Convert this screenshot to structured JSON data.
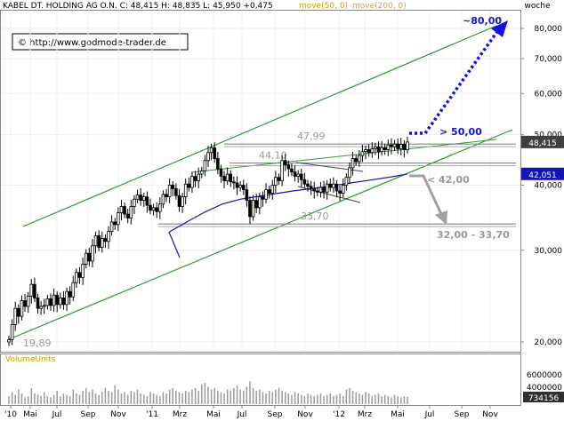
{
  "header": {
    "symbol": "KABEL DT. HOLDING AG O.N.",
    "quote": "C: 48,415  H: 48,835  L: 45,950  +0,475",
    "ma1": "move(50, 0)",
    "ma2": "move(200, 0)",
    "timeframe": "woche"
  },
  "copyright": "© http://www.godmode-trader.de",
  "colors": {
    "channel": "#2e9a2e",
    "price_up": "#000000",
    "price_down": "#000000",
    "sma50": "#1414b4",
    "resistance": "#888888",
    "blue_annot": "#1010e0",
    "grey_annot": "#a0a0a0",
    "price_box": "#404040",
    "sma_box": "#1414b4"
  },
  "chart_data": {
    "type": "candlestick",
    "y_scale": "log",
    "ylim": [
      19.5,
      87
    ],
    "x_labels": [
      "'10",
      "Mai",
      "Jul",
      "Sep",
      "Nov",
      "'11",
      "Mrz",
      "Mai",
      "Jul",
      "Sep",
      "Nov",
      "'12",
      "Mrz",
      "Mai",
      "Jul",
      "Sep",
      "Nov"
    ],
    "y_ticks": [
      "80,000",
      "70,000",
      "60,000",
      "50,000",
      "40,000",
      "30,000",
      "20,000"
    ],
    "last_price_label": "48,415",
    "sma_label": "42,051",
    "volume_label": "VolumeUnits",
    "volume_ticks": [
      "6000000",
      "4000000"
    ],
    "volume_last_label": "734156",
    "levels": [
      {
        "label": "47,99",
        "value": 47.99
      },
      {
        "label": "44,10",
        "value": 44.1
      },
      {
        "label": "33,70",
        "value": 33.7
      }
    ],
    "annotations": {
      "low_label": "19,89",
      "target_up": "~80,00",
      "breakout": "> 50,00",
      "breakdown": "< 42,00",
      "target_down": "32,00 - 33,70"
    },
    "closes": [
      20.2,
      21.6,
      23.2,
      22.4,
      24.0,
      23.4,
      24.5,
      25.8,
      24.3,
      23.2,
      23.4,
      23.5,
      24.2,
      23.5,
      24.6,
      23.6,
      24.3,
      23.6,
      25.0,
      24.4,
      26.0,
      27.2,
      26.6,
      28.2,
      29.6,
      28.6,
      30.6,
      32.0,
      30.4,
      31.6,
      31.2,
      32.6,
      34.0,
      33.6,
      35.4,
      36.4,
      35.2,
      34.6,
      36.4,
      37.6,
      38.3,
      37.4,
      38.0,
      36.6,
      35.8,
      36.2,
      35.6,
      36.8,
      38.4,
      38.0,
      40.0,
      39.4,
      38.2,
      36.4,
      38.0,
      40.2,
      39.6,
      41.6,
      40.8,
      42.0,
      42.6,
      44.6,
      46.2,
      47.2,
      45.0,
      43.0,
      41.6,
      40.8,
      42.0,
      40.6,
      40.4,
      39.6,
      40.0,
      39.2,
      37.4,
      34.8,
      37.4,
      36.2,
      38.0,
      37.6,
      39.2,
      38.6,
      40.0,
      41.4,
      40.8,
      44.6,
      43.8,
      43.0,
      42.4,
      41.6,
      42.0,
      41.0,
      40.2,
      39.8,
      39.4,
      39.0,
      38.8,
      39.6,
      38.8,
      40.2,
      39.6,
      40.2,
      39.0,
      38.6,
      40.0,
      41.4,
      43.2,
      45.0,
      44.4,
      45.6,
      46.4,
      46.8,
      46.2,
      47.0,
      47.4,
      46.4,
      47.2,
      46.8,
      47.8,
      47.4,
      48.0,
      47.0,
      47.9,
      46.8,
      48.415
    ],
    "sma50": [
      [
        190,
        32.5
      ],
      [
        210,
        34.0
      ],
      [
        230,
        35.5
      ],
      [
        250,
        36.8
      ],
      [
        270,
        37.6
      ],
      [
        300,
        38.3
      ],
      [
        330,
        39.0
      ],
      [
        360,
        39.6
      ],
      [
        390,
        40.3
      ],
      [
        420,
        41.0
      ],
      [
        440,
        41.5
      ],
      [
        458,
        42.051
      ]
    ],
    "volumes": [
      0.3,
      0.45,
      0.35,
      0.55,
      0.4,
      0.25,
      0.3,
      0.6,
      0.4,
      0.35,
      0.3,
      0.45,
      0.3,
      0.25,
      0.35,
      0.5,
      0.3,
      0.4,
      0.35,
      0.3,
      0.55,
      0.4,
      0.35,
      0.5,
      0.6,
      0.45,
      0.55,
      0.4,
      0.35,
      0.45,
      0.6,
      0.5,
      0.45,
      0.7,
      0.55,
      0.4,
      0.45,
      0.35,
      0.5,
      0.45,
      0.55,
      0.4,
      0.35,
      0.3,
      0.45,
      0.4,
      0.35,
      0.3,
      0.45,
      0.4,
      0.55,
      0.6,
      0.5,
      0.45,
      0.4,
      0.5,
      0.45,
      0.55,
      0.6,
      0.5,
      0.75,
      0.8,
      0.65,
      0.55,
      0.6,
      0.5,
      0.45,
      0.4,
      0.55,
      0.5,
      0.6,
      0.7,
      0.55,
      0.5,
      0.65,
      0.85,
      0.6,
      0.5,
      0.55,
      0.45,
      0.4,
      0.5,
      0.45,
      0.55,
      0.6,
      0.5,
      0.45,
      0.4,
      0.35,
      0.45,
      0.4,
      0.35,
      0.3,
      0.4,
      0.35,
      0.3,
      0.35,
      0.4,
      0.3,
      0.35,
      0.4,
      0.3,
      0.35,
      0.4,
      0.3,
      0.55,
      0.6,
      0.5,
      0.45,
      0.4,
      0.35,
      0.45,
      0.4,
      0.3,
      0.35,
      0.4,
      0.3,
      0.35,
      0.3,
      0.25,
      0.35,
      0.3,
      0.25,
      0.3,
      0.28
    ]
  }
}
